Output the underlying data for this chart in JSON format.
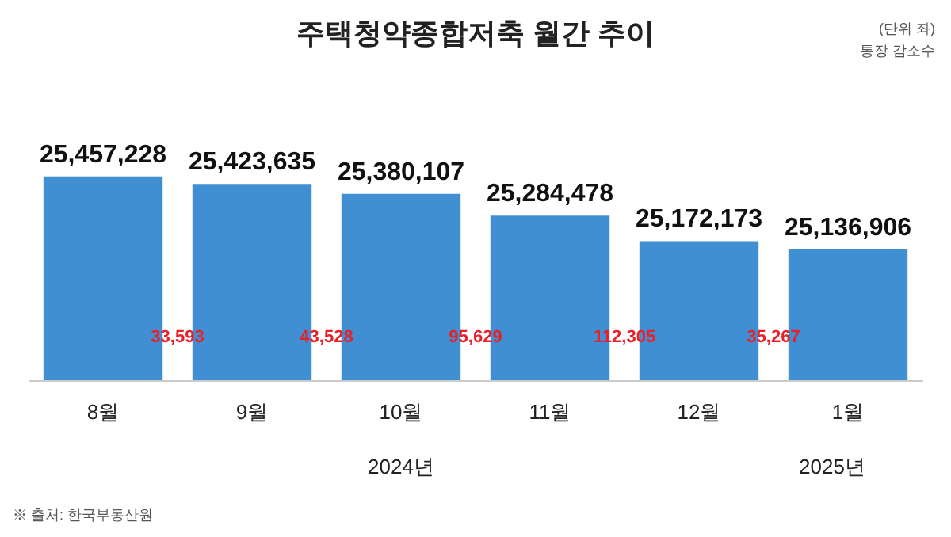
{
  "chart_data": {
    "type": "bar",
    "title": "주택청약종합저축 월간 추이",
    "categories": [
      "8월",
      "9월",
      "10월",
      "11월",
      "12월",
      "1월"
    ],
    "values": [
      25457228,
      25423635,
      25380107,
      25284478,
      25172173,
      25136906
    ],
    "value_labels": [
      "25,457,228",
      "25,423,635",
      "25,380,107",
      "25,284,478",
      "25,172,173",
      "25,136,906"
    ],
    "color": "#3f8fd2",
    "grid": false,
    "annotations": [
      "(단위 좌)",
      "통장 감소수",
      "33,593",
      "43,528",
      "95,629",
      "112,305",
      "35,267",
      "2024년",
      "2025년",
      "※ 출처: 한국부동산원"
    ]
  }
}
